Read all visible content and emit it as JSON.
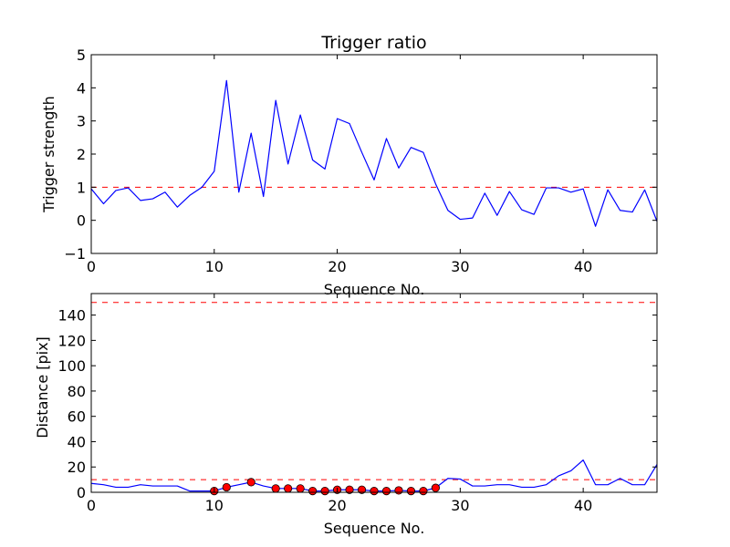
{
  "chart_data": [
    {
      "type": "line",
      "title": "Trigger ratio",
      "xlabel": "Sequence No.",
      "ylabel": "Trigger strength",
      "xlim": [
        0,
        46
      ],
      "ylim": [
        -1,
        5
      ],
      "xticks": [
        0,
        10,
        20,
        30,
        40
      ],
      "yticks": [
        -1,
        0,
        1,
        2,
        3,
        4,
        5
      ],
      "grid": false,
      "series": [
        {
          "color": "#0000ff",
          "x": [
            0,
            1,
            2,
            3,
            4,
            5,
            6,
            7,
            8,
            9,
            10,
            11,
            12,
            13,
            14,
            15,
            16,
            17,
            18,
            19,
            20,
            21,
            22,
            23,
            24,
            25,
            26,
            27,
            28,
            29,
            30,
            31,
            32,
            33,
            34,
            35,
            36,
            37,
            38,
            39,
            40,
            41,
            42,
            43,
            44,
            45,
            46
          ],
          "y": [
            0.95,
            0.5,
            0.9,
            0.98,
            0.6,
            0.65,
            0.85,
            0.4,
            0.75,
            1.0,
            1.48,
            4.22,
            0.85,
            2.63,
            0.72,
            3.62,
            1.7,
            3.18,
            1.82,
            1.55,
            3.07,
            2.92,
            2.05,
            1.22,
            2.47,
            1.58,
            2.2,
            2.05,
            1.1,
            0.3,
            0.03,
            0.07,
            0.82,
            0.15,
            0.87,
            0.32,
            0.18,
            0.98,
            0.98,
            0.85,
            0.95,
            -0.18,
            0.92,
            0.3,
            0.25,
            0.92,
            -0.03
          ]
        }
      ],
      "hlines": [
        {
          "y": 1,
          "color": "#ff0000",
          "style": "dashed"
        }
      ]
    },
    {
      "type": "line",
      "title": "",
      "xlabel": "Sequence No.",
      "ylabel": "Distance [pix]",
      "xlim": [
        0,
        46
      ],
      "ylim": [
        0,
        157
      ],
      "xticks": [
        0,
        10,
        20,
        30,
        40
      ],
      "yticks": [
        0,
        20,
        40,
        60,
        80,
        100,
        120,
        140
      ],
      "grid": false,
      "series": [
        {
          "color": "#0000ff",
          "x": [
            0,
            1,
            2,
            3,
            4,
            5,
            6,
            7,
            8,
            9,
            10,
            11,
            12,
            13,
            14,
            15,
            16,
            17,
            18,
            19,
            20,
            21,
            22,
            23,
            24,
            25,
            26,
            27,
            28,
            29,
            30,
            31,
            32,
            33,
            34,
            35,
            36,
            37,
            38,
            39,
            40,
            41,
            42,
            43,
            44,
            45,
            46
          ],
          "y": [
            7,
            6,
            4,
            4,
            6,
            5,
            5,
            5,
            1,
            1,
            1,
            4,
            6,
            8,
            5,
            3,
            3,
            3,
            1,
            1,
            2,
            2,
            2,
            1,
            1,
            1.5,
            1,
            1,
            3.5,
            11,
            10.5,
            5,
            5,
            6,
            6,
            4,
            4,
            6,
            13,
            17,
            25.5,
            6,
            6,
            11,
            6,
            6,
            22
          ]
        }
      ],
      "markers": {
        "color": "#ff0000",
        "x": [
          10,
          11,
          13,
          15,
          16,
          17,
          18,
          19,
          20,
          21,
          22,
          23,
          24,
          25,
          26,
          27,
          28
        ],
        "y": [
          1,
          4,
          8,
          3,
          3,
          3,
          1,
          1,
          2,
          2,
          2,
          1,
          1,
          1.5,
          1,
          1,
          3.5
        ]
      },
      "hlines": [
        {
          "y": 10,
          "color": "#ff0000",
          "style": "dashed"
        },
        {
          "y": 150,
          "color": "#ff0000",
          "style": "dashed"
        }
      ]
    }
  ]
}
